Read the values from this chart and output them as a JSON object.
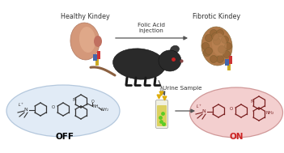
{
  "bg_color": "#ffffff",
  "title_healthy": "Healthy Kindey",
  "title_fibrotic": "Fibrotic Kindey",
  "label_folic": "Folic Acid\ninjection",
  "label_urine": "Urine Sample",
  "label_off": "OFF",
  "label_on": "ON",
  "off_ellipse_color": "#dce8f5",
  "on_ellipse_color": "#f2caca",
  "on_label_color": "#cc2222",
  "off_label_color": "#000000",
  "arrow_color": "#555555",
  "healthy_kidney_color": "#d4987a",
  "fibrotic_kidney_color": "#b07850",
  "mouse_body_color": "#2a2a2a",
  "text_color": "#333333",
  "mol_color": "#222222",
  "mol_on_color": "#7a2020",
  "figsize": [
    3.51,
    1.89
  ],
  "dpi": 100
}
